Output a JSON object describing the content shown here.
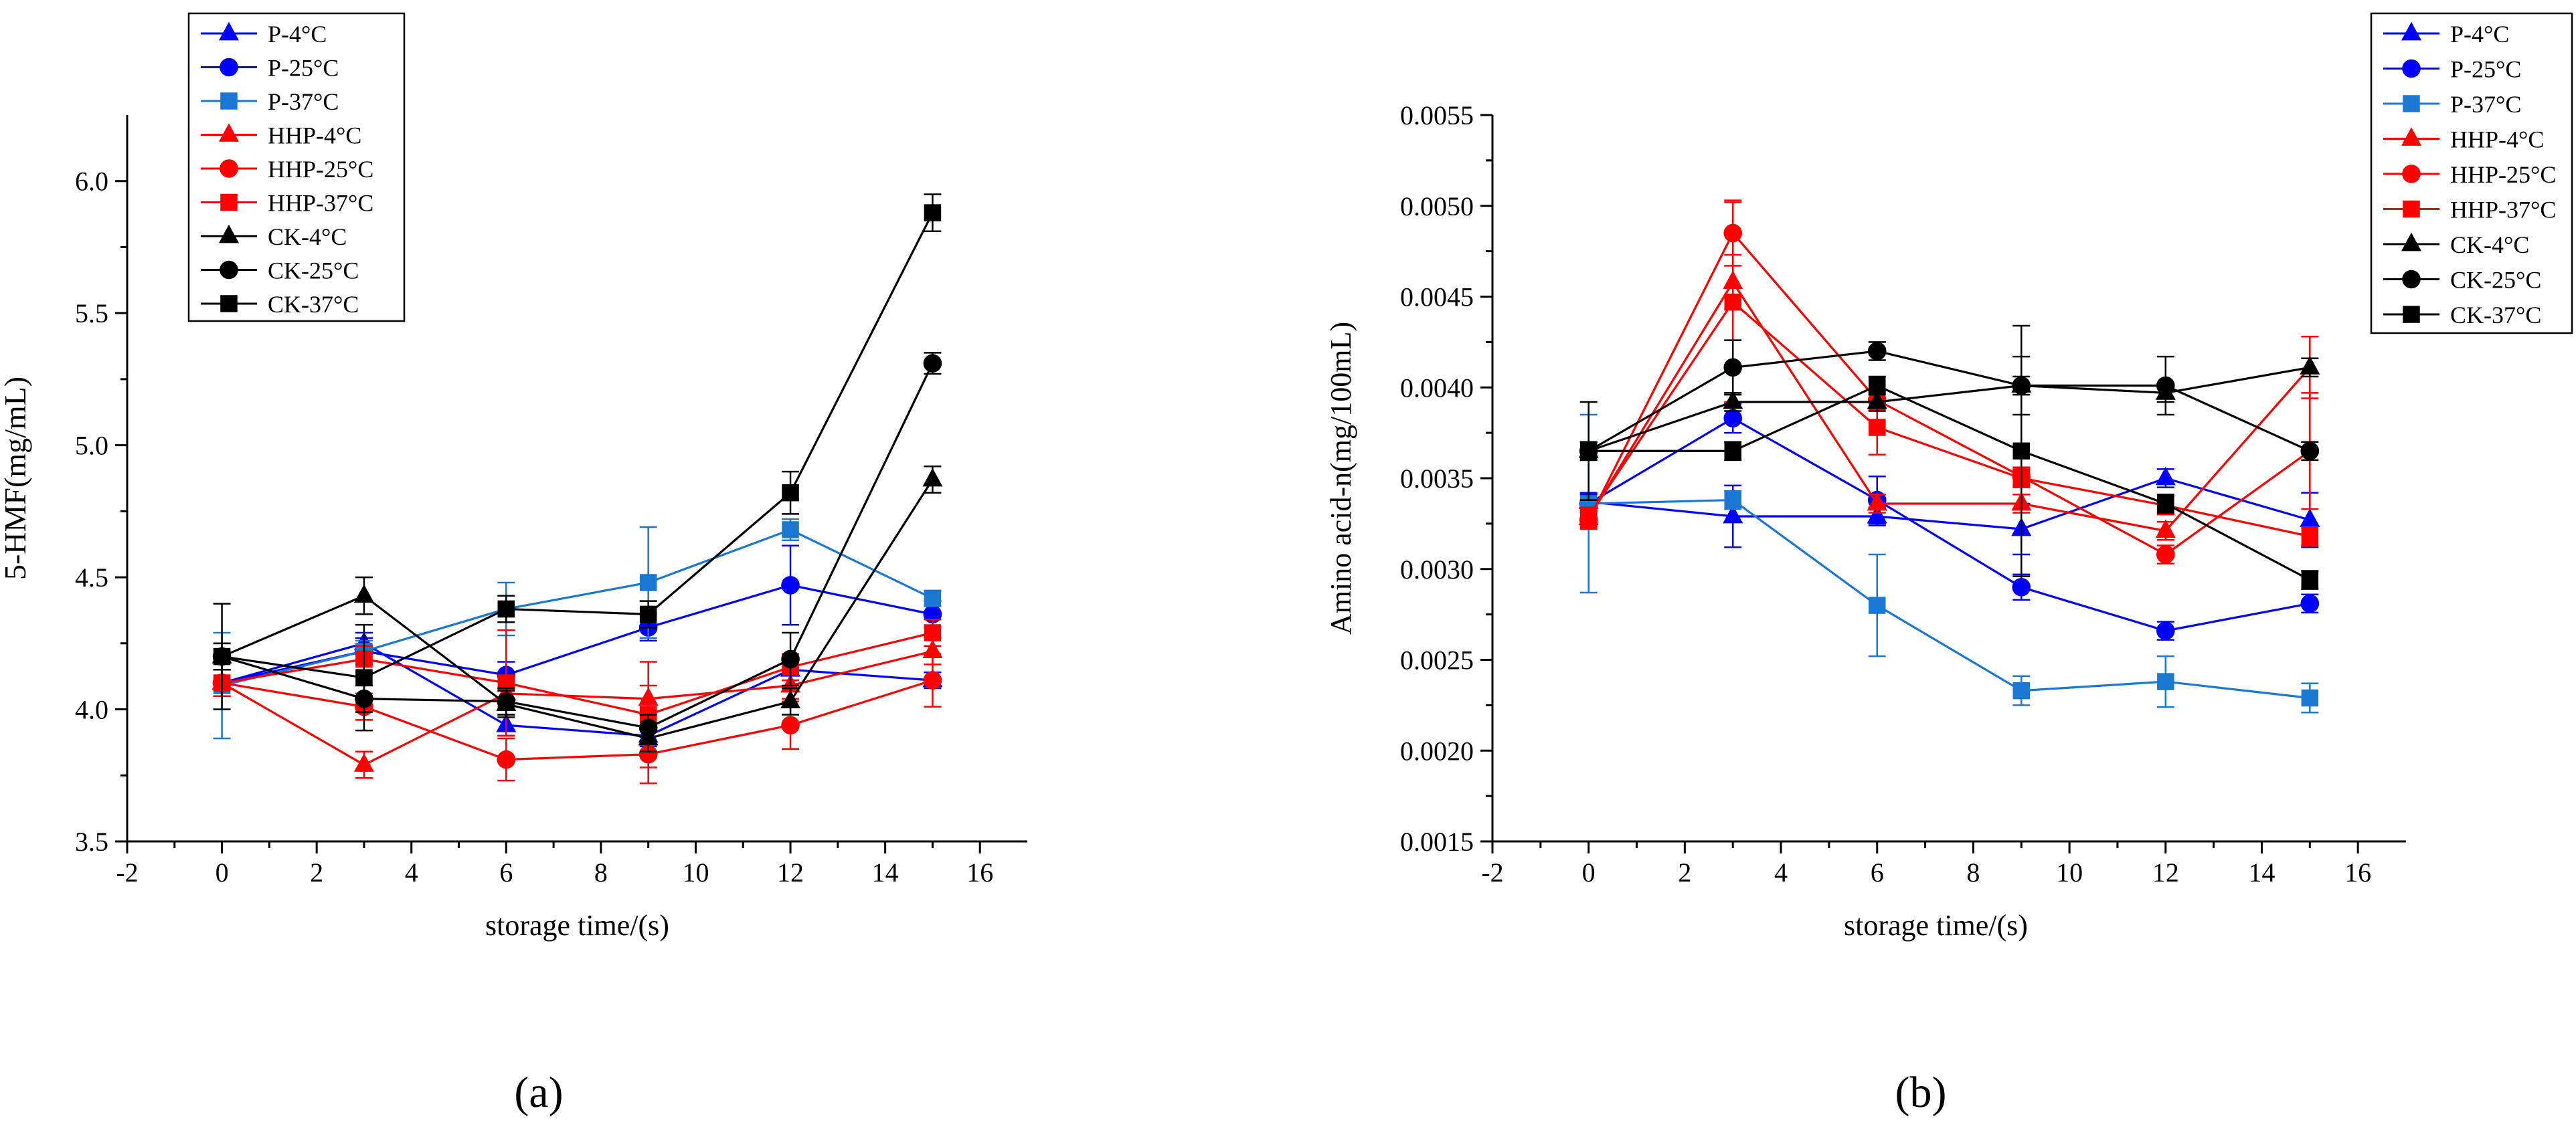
{
  "chart_data": [
    {
      "type": "line",
      "panel_label": "(a)",
      "xlabel": "storage time/(s)",
      "ylabel": "5-HMF(mg/mL)",
      "xlim": [
        -2,
        17
      ],
      "ylim": [
        3.5,
        6.25
      ],
      "xticks": [
        -2,
        0,
        2,
        4,
        6,
        8,
        10,
        12,
        14,
        16
      ],
      "yticks": [
        3.5,
        4.0,
        4.5,
        5.0,
        5.5,
        6.0
      ],
      "xtick_labels": [
        "-2",
        "0",
        "2",
        "4",
        "6",
        "8",
        "10",
        "12",
        "14",
        "16"
      ],
      "ytick_labels": [
        "3.5",
        "4.0",
        "4.5",
        "5.0",
        "5.5",
        "6.0"
      ],
      "legend_position": "top-left",
      "x": [
        0,
        3,
        6,
        9,
        12,
        15
      ],
      "series": [
        {
          "name": "P-4°C",
          "color": "#0000ff",
          "marker": "triangle",
          "values": [
            4.1,
            4.25,
            3.94,
            3.9,
            4.15,
            4.11
          ],
          "errors": [
            0.05,
            0.04,
            0.04,
            0.04,
            0.04,
            0.03
          ]
        },
        {
          "name": "P-25°C",
          "color": "#0000ff",
          "marker": "circle",
          "values": [
            4.1,
            4.22,
            4.13,
            4.31,
            4.47,
            4.36
          ],
          "errors": [
            0.05,
            0.05,
            0.05,
            0.05,
            0.15,
            0.05
          ]
        },
        {
          "name": "P-37°C",
          "color": "#1a78d2",
          "marker": "square",
          "values": [
            4.09,
            4.22,
            4.38,
            4.48,
            4.68,
            4.42
          ],
          "errors": [
            0.2,
            0.04,
            0.1,
            0.21,
            0.04,
            0.03
          ]
        },
        {
          "name": "HHP-4°C",
          "color": "#ff0000",
          "marker": "triangle",
          "values": [
            4.1,
            3.79,
            4.06,
            4.04,
            4.09,
            4.22
          ],
          "errors": [
            0.05,
            0.05,
            0.05,
            0.05,
            0.05,
            0.05
          ]
        },
        {
          "name": "HHP-25°C",
          "color": "#ff0000",
          "marker": "circle",
          "values": [
            4.1,
            4.01,
            3.81,
            3.83,
            3.94,
            4.11
          ],
          "errors": [
            0.05,
            0.05,
            0.08,
            0.11,
            0.09,
            0.1
          ]
        },
        {
          "name": "HHP-37°C",
          "color": "#ff0000",
          "marker": "square",
          "values": [
            4.1,
            4.19,
            4.1,
            3.98,
            4.16,
            4.29
          ],
          "errors": [
            0.05,
            0.05,
            0.2,
            0.2,
            0.05,
            0.05
          ]
        },
        {
          "name": "CK-4°C",
          "color": "#000000",
          "marker": "triangle",
          "values": [
            4.2,
            4.43,
            4.02,
            3.89,
            4.03,
            4.87
          ],
          "errors": [
            0.05,
            0.07,
            0.05,
            0.05,
            0.05,
            0.05
          ]
        },
        {
          "name": "CK-25°C",
          "color": "#000000",
          "marker": "circle",
          "values": [
            4.2,
            4.04,
            4.03,
            3.93,
            4.19,
            5.31
          ],
          "errors": [
            0.05,
            0.05,
            0.05,
            0.05,
            0.1,
            0.04
          ]
        },
        {
          "name": "CK-37°C",
          "color": "#000000",
          "marker": "square",
          "values": [
            4.2,
            4.12,
            4.38,
            4.36,
            4.82,
            5.88
          ],
          "errors": [
            0.2,
            0.2,
            0.05,
            0.05,
            0.08,
            0.07
          ]
        }
      ]
    },
    {
      "type": "line",
      "panel_label": "(b)",
      "xlabel": "storage time/(s)",
      "ylabel": "Amino acid-n(mg/100mL)",
      "xlim": [
        -2,
        17
      ],
      "ylim": [
        0.0015,
        0.0055
      ],
      "xticks": [
        -2,
        0,
        2,
        4,
        6,
        8,
        10,
        12,
        14,
        16
      ],
      "yticks": [
        0.0015,
        0.002,
        0.0025,
        0.003,
        0.0035,
        0.004,
        0.0045,
        0.005,
        0.0055
      ],
      "xtick_labels": [
        "-2",
        "0",
        "2",
        "4",
        "6",
        "8",
        "10",
        "12",
        "14",
        "16"
      ],
      "ytick_labels": [
        "0.0015",
        "0.0020",
        "0.0025",
        "0.0030",
        "0.0035",
        "0.0040",
        "0.0045",
        "0.0050",
        "0.0055"
      ],
      "legend_position": "top-right",
      "x": [
        0,
        3,
        6,
        9,
        12,
        15
      ],
      "series": [
        {
          "name": "P-4°C",
          "color": "#0000ff",
          "marker": "triangle",
          "values": [
            0.00337,
            0.00329,
            0.00329,
            0.00322,
            0.0035,
            0.00327
          ],
          "errors": [
            5e-05,
            0.00017,
            5e-05,
            0.00014,
            5e-05,
            0.00015
          ]
        },
        {
          "name": "P-25°C",
          "color": "#0000ff",
          "marker": "circle",
          "values": [
            0.00336,
            0.00383,
            0.00338,
            0.0029,
            0.00266,
            0.00281
          ],
          "errors": [
            5e-05,
            8e-05,
            0.00013,
            7e-05,
            5e-05,
            5e-05
          ]
        },
        {
          "name": "P-37°C",
          "color": "#1a78d2",
          "marker": "square",
          "values": [
            0.00336,
            0.00338,
            0.0028,
            0.00233,
            0.00238,
            0.00229
          ],
          "errors": [
            0.00049,
            5e-05,
            0.00028,
            8e-05,
            0.00014,
            8e-05
          ]
        },
        {
          "name": "HHP-4°C",
          "color": "#ff0000",
          "marker": "triangle",
          "values": [
            0.00328,
            0.00458,
            0.00336,
            0.00336,
            0.00321,
            0.00411
          ],
          "errors": [
            5e-05,
            0.00015,
            5e-05,
            5e-05,
            5e-05,
            0.00017
          ]
        },
        {
          "name": "HHP-25°C",
          "color": "#ff0000",
          "marker": "circle",
          "values": [
            0.00327,
            0.00485,
            0.00393,
            0.00351,
            0.00308,
            0.00365
          ],
          "errors": [
            5e-05,
            0.00018,
            5e-05,
            5e-05,
            5e-05,
            0.00032
          ]
        },
        {
          "name": "HHP-37°C",
          "color": "#ff0000",
          "marker": "square",
          "values": [
            0.00329,
            0.00447,
            0.00378,
            0.0035,
            0.00335,
            0.00318
          ],
          "errors": [
            5e-05,
            0.00055,
            0.00015,
            5e-05,
            5e-05,
            5e-05
          ]
        },
        {
          "name": "CK-4°C",
          "color": "#000000",
          "marker": "triangle",
          "values": [
            0.00365,
            0.00392,
            0.00392,
            0.00401,
            0.00397,
            0.00411
          ],
          "errors": [
            5e-05,
            5e-05,
            5e-05,
            5e-05,
            5e-05,
            5e-05
          ]
        },
        {
          "name": "CK-25°C",
          "color": "#000000",
          "marker": "circle",
          "values": [
            0.00365,
            0.00411,
            0.0042,
            0.00401,
            0.00401,
            0.00365
          ],
          "errors": [
            5e-05,
            0.00015,
            5e-05,
            0.00016,
            0.00016,
            5e-05
          ]
        },
        {
          "name": "CK-37°C",
          "color": "#000000",
          "marker": "square",
          "values": [
            0.00365,
            0.00365,
            0.00401,
            0.00365,
            0.00336,
            0.00294
          ],
          "errors": [
            0.00027,
            5e-05,
            5e-05,
            0.00069,
            5e-05,
            5e-05
          ]
        }
      ]
    }
  ]
}
